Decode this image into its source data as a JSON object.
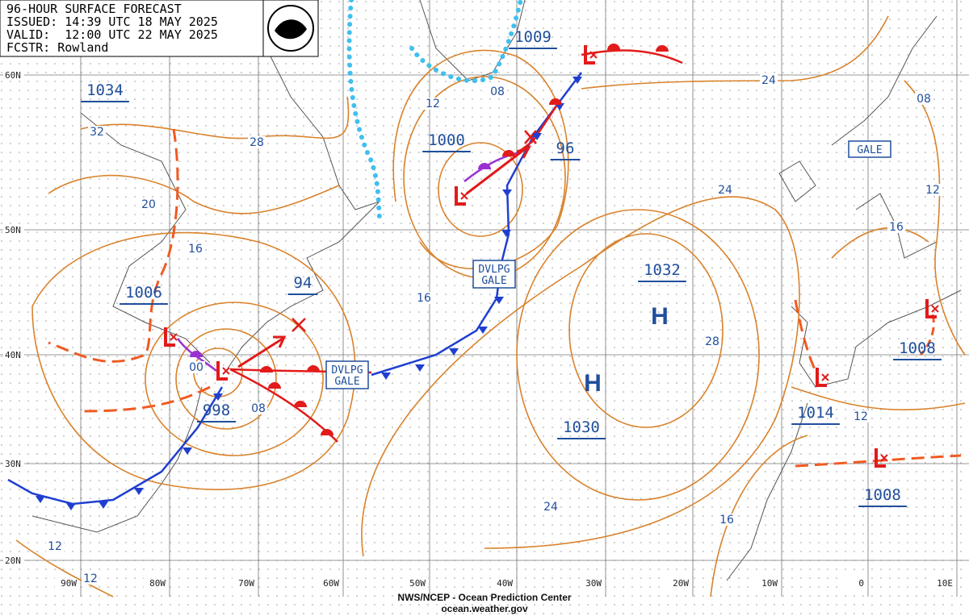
{
  "header": {
    "lines": [
      "96-HOUR SURFACE FORECAST",
      "ISSUED: 14:39 UTC 18 MAY 2025",
      "VALID:  12:00 UTC 22 MAY 2025",
      "FCSTR: Rowland"
    ]
  },
  "pressure_labels": [
    "1034",
    "1006",
    "998",
    "1000",
    "1009",
    "96",
    "94",
    "1032",
    "1030",
    "1014",
    "1008",
    "1008"
  ],
  "highs": [
    "H",
    "H"
  ],
  "isobar_labels": [
    "32",
    "28",
    "20",
    "16",
    "12",
    "08",
    "16",
    "24",
    "24",
    "08",
    "12",
    "16",
    "28",
    "12",
    "24",
    "16",
    "12",
    "12",
    "08",
    "00"
  ],
  "warnings": [
    [
      "GALE"
    ],
    [
      "DVLPG",
      "GALE"
    ],
    [
      "DVLPG",
      "GALE"
    ]
  ],
  "latitudes": [
    "60N",
    "50N",
    "40N",
    "30N",
    "20N"
  ],
  "longitudes": [
    "90W",
    "80W",
    "70W",
    "60W",
    "50W",
    "40W",
    "30W",
    "20W",
    "10W",
    "0",
    "10E"
  ],
  "footer": [
    "NWS/NCEP - Ocean Prediction Center",
    "ocean.weather.gov"
  ]
}
